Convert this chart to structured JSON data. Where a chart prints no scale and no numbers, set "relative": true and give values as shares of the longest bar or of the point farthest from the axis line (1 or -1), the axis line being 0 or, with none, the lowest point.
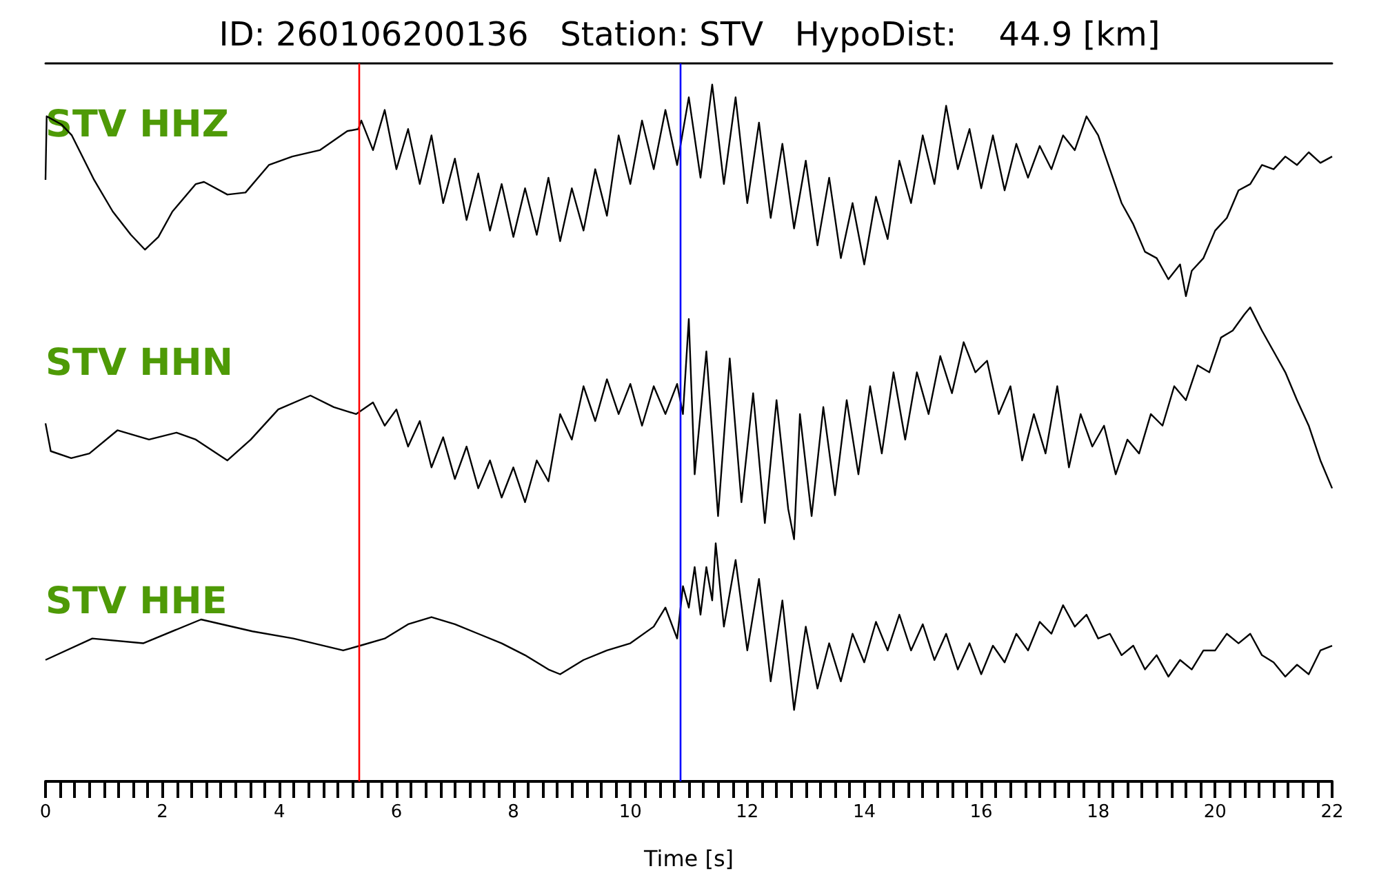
{
  "chart_data": [
    {
      "type": "line",
      "title": "ID: 260106200136   Station: STV   HypoDist:    44.9 [km]",
      "relative": true,
      "tick_labels": false,
      "xlim": [
        0,
        22
      ],
      "ref_lines": [
        {
          "axis": "x",
          "value": 5.35,
          "color": "#ff0000"
        },
        {
          "axis": "x",
          "value": 10.85,
          "color": "#0000ff"
        }
      ],
      "series": [
        {
          "name": "STV HHZ",
          "color": "#000000",
          "x": [
            0,
            0.02,
            0.28,
            0.45,
            0.83,
            1.15,
            1.46,
            1.7,
            1.93,
            2.17,
            2.57,
            2.71,
            3.11,
            3.42,
            3.82,
            4.22,
            4.69,
            5.16,
            5.35,
            5.4,
            5.6,
            5.8,
            6.0,
            6.2,
            6.4,
            6.6,
            6.8,
            7.0,
            7.2,
            7.4,
            7.6,
            7.8,
            8.0,
            8.2,
            8.4,
            8.6,
            8.8,
            9.0,
            9.2,
            9.4,
            9.6,
            9.8,
            10.0,
            10.2,
            10.4,
            10.6,
            10.8,
            11.0,
            11.2,
            11.4,
            11.6,
            11.8,
            12.0,
            12.2,
            12.4,
            12.6,
            12.8,
            13.0,
            13.2,
            13.4,
            13.6,
            13.8,
            14.0,
            14.2,
            14.4,
            14.6,
            14.8,
            15.0,
            15.2,
            15.4,
            15.6,
            15.8,
            16.0,
            16.2,
            16.4,
            16.6,
            16.8,
            17.0,
            17.2,
            17.4,
            17.6,
            17.8,
            18.0,
            18.2,
            18.4,
            18.6,
            18.8,
            19.0,
            19.2,
            19.4,
            19.5,
            19.6,
            19.8,
            20.0,
            20.2,
            20.4,
            20.6,
            20.8,
            21.0,
            21.2,
            21.4,
            21.6,
            21.8,
            22.0
          ],
          "values": [
            0.55,
            0.85,
            0.81,
            0.76,
            0.55,
            0.4,
            0.29,
            0.22,
            0.28,
            0.4,
            0.53,
            0.54,
            0.48,
            0.49,
            0.62,
            0.66,
            0.69,
            0.78,
            0.79,
            0.83,
            0.69,
            0.88,
            0.6,
            0.79,
            0.53,
            0.76,
            0.44,
            0.65,
            0.36,
            0.58,
            0.31,
            0.53,
            0.28,
            0.51,
            0.29,
            0.56,
            0.26,
            0.51,
            0.31,
            0.6,
            0.38,
            0.76,
            0.53,
            0.83,
            0.6,
            0.88,
            0.62,
            0.94,
            0.56,
            1.0,
            0.53,
            0.94,
            0.44,
            0.82,
            0.37,
            0.72,
            0.32,
            0.64,
            0.24,
            0.56,
            0.18,
            0.44,
            0.15,
            0.47,
            0.27,
            0.64,
            0.44,
            0.76,
            0.53,
            0.9,
            0.6,
            0.79,
            0.51,
            0.76,
            0.5,
            0.72,
            0.56,
            0.71,
            0.6,
            0.76,
            0.69,
            0.85,
            0.76,
            0.6,
            0.44,
            0.34,
            0.21,
            0.18,
            0.08,
            0.15,
            0,
            0.12,
            0.18,
            0.31,
            0.37,
            0.5,
            0.53,
            0.62,
            0.6,
            0.66,
            0.62,
            0.68,
            0.63,
            0.66
          ]
        }
      ]
    },
    {
      "type": "line",
      "relative": true,
      "tick_labels": false,
      "xlim": [
        0,
        22
      ],
      "ref_lines": [
        {
          "axis": "x",
          "value": 5.35,
          "color": "#ff0000"
        },
        {
          "axis": "x",
          "value": 10.85,
          "color": "#0000ff"
        }
      ],
      "series": [
        {
          "name": "STV HHN",
          "color": "#000000",
          "x": [
            0,
            0.09,
            0.44,
            0.75,
            1.23,
            1.77,
            2.24,
            2.57,
            3.11,
            3.51,
            3.98,
            4.53,
            4.93,
            5.31,
            5.6,
            5.8,
            6.0,
            6.2,
            6.4,
            6.6,
            6.8,
            7.0,
            7.2,
            7.4,
            7.6,
            7.8,
            8.0,
            8.2,
            8.4,
            8.6,
            8.8,
            9.0,
            9.2,
            9.4,
            9.6,
            9.8,
            10.0,
            10.2,
            10.4,
            10.6,
            10.8,
            10.9,
            11.0,
            11.1,
            11.3,
            11.5,
            11.7,
            11.9,
            12.1,
            12.3,
            12.5,
            12.7,
            12.8,
            12.9,
            13.1,
            13.3,
            13.5,
            13.7,
            13.9,
            14.1,
            14.3,
            14.5,
            14.7,
            14.9,
            15.1,
            15.3,
            15.5,
            15.7,
            15.9,
            16.1,
            16.3,
            16.5,
            16.7,
            16.9,
            17.1,
            17.3,
            17.5,
            17.7,
            17.9,
            18.1,
            18.3,
            18.5,
            18.7,
            18.9,
            19.1,
            19.3,
            19.5,
            19.7,
            19.9,
            20.1,
            20.3,
            20.5,
            20.6,
            20.8,
            21.0,
            21.2,
            21.4,
            21.6,
            21.8,
            22.0
          ],
          "values": [
            0.5,
            0.38,
            0.35,
            0.37,
            0.47,
            0.43,
            0.46,
            0.43,
            0.34,
            0.43,
            0.56,
            0.62,
            0.57,
            0.54,
            0.59,
            0.49,
            0.56,
            0.4,
            0.51,
            0.31,
            0.44,
            0.26,
            0.4,
            0.22,
            0.34,
            0.18,
            0.31,
            0.16,
            0.34,
            0.25,
            0.54,
            0.43,
            0.66,
            0.51,
            0.69,
            0.54,
            0.67,
            0.49,
            0.66,
            0.54,
            0.67,
            0.54,
            0.95,
            0.28,
            0.81,
            0.1,
            0.78,
            0.16,
            0.63,
            0.07,
            0.6,
            0.13,
            0,
            0.54,
            0.1,
            0.57,
            0.19,
            0.6,
            0.28,
            0.66,
            0.37,
            0.72,
            0.43,
            0.72,
            0.54,
            0.79,
            0.63,
            0.85,
            0.72,
            0.77,
            0.54,
            0.66,
            0.34,
            0.54,
            0.37,
            0.66,
            0.31,
            0.54,
            0.4,
            0.49,
            0.28,
            0.43,
            0.37,
            0.54,
            0.49,
            0.66,
            0.6,
            0.75,
            0.72,
            0.87,
            0.9,
            0.97,
            1.0,
            0.9,
            0.81,
            0.72,
            0.6,
            0.49,
            0.34,
            0.22
          ]
        }
      ]
    },
    {
      "type": "line",
      "xlabel": "Time [s]",
      "relative": true,
      "tick_labels": "x",
      "xlim": [
        0,
        22
      ],
      "xticks": [
        0,
        {
          "value": 0.25,
          "label": null
        },
        {
          "value": 0.5,
          "label": null
        },
        {
          "value": 0.75,
          "label": null
        },
        {
          "value": 1,
          "label": null
        },
        {
          "value": 1.25,
          "label": null
        },
        {
          "value": 1.5,
          "label": null
        },
        {
          "value": 1.75,
          "label": null
        },
        2,
        {
          "value": 2.25,
          "label": null
        },
        {
          "value": 2.5,
          "label": null
        },
        {
          "value": 2.75,
          "label": null
        },
        {
          "value": 3,
          "label": null
        },
        {
          "value": 3.25,
          "label": null
        },
        {
          "value": 3.5,
          "label": null
        },
        {
          "value": 3.75,
          "label": null
        },
        4,
        {
          "value": 4.25,
          "label": null
        },
        {
          "value": 4.5,
          "label": null
        },
        {
          "value": 4.75,
          "label": null
        },
        {
          "value": 5,
          "label": null
        },
        {
          "value": 5.25,
          "label": null
        },
        {
          "value": 5.5,
          "label": null
        },
        {
          "value": 5.75,
          "label": null
        },
        6,
        {
          "value": 6.25,
          "label": null
        },
        {
          "value": 6.5,
          "label": null
        },
        {
          "value": 6.75,
          "label": null
        },
        {
          "value": 7,
          "label": null
        },
        {
          "value": 7.25,
          "label": null
        },
        {
          "value": 7.5,
          "label": null
        },
        {
          "value": 7.75,
          "label": null
        },
        8,
        {
          "value": 8.25,
          "label": null
        },
        {
          "value": 8.5,
          "label": null
        },
        {
          "value": 8.75,
          "label": null
        },
        {
          "value": 9,
          "label": null
        },
        {
          "value": 9.25,
          "label": null
        },
        {
          "value": 9.5,
          "label": null
        },
        {
          "value": 9.75,
          "label": null
        },
        10,
        {
          "value": 10.25,
          "label": null
        },
        {
          "value": 10.5,
          "label": null
        },
        {
          "value": 10.75,
          "label": null
        },
        {
          "value": 11,
          "label": null
        },
        {
          "value": 11.25,
          "label": null
        },
        {
          "value": 11.5,
          "label": null
        },
        {
          "value": 11.75,
          "label": null
        },
        12,
        {
          "value": 12.25,
          "label": null
        },
        {
          "value": 12.5,
          "label": null
        },
        {
          "value": 12.75,
          "label": null
        },
        {
          "value": 13,
          "label": null
        },
        {
          "value": 13.25,
          "label": null
        },
        {
          "value": 13.5,
          "label": null
        },
        {
          "value": 13.75,
          "label": null
        },
        14,
        {
          "value": 14.25,
          "label": null
        },
        {
          "value": 14.5,
          "label": null
        },
        {
          "value": 14.75,
          "label": null
        },
        {
          "value": 15,
          "label": null
        },
        {
          "value": 15.25,
          "label": null
        },
        {
          "value": 15.5,
          "label": null
        },
        {
          "value": 15.75,
          "label": null
        },
        16,
        {
          "value": 16.25,
          "label": null
        },
        {
          "value": 16.5,
          "label": null
        },
        {
          "value": 16.75,
          "label": null
        },
        {
          "value": 17,
          "label": null
        },
        {
          "value": 17.25,
          "label": null
        },
        {
          "value": 17.5,
          "label": null
        },
        {
          "value": 17.75,
          "label": null
        },
        18,
        {
          "value": 18.25,
          "label": null
        },
        {
          "value": 18.5,
          "label": null
        },
        {
          "value": 18.75,
          "label": null
        },
        {
          "value": 19,
          "label": null
        },
        {
          "value": 19.25,
          "label": null
        },
        {
          "value": 19.5,
          "label": null
        },
        {
          "value": 19.75,
          "label": null
        },
        20,
        {
          "value": 20.25,
          "label": null
        },
        {
          "value": 20.5,
          "label": null
        },
        {
          "value": 20.75,
          "label": null
        },
        {
          "value": 21,
          "label": null
        },
        {
          "value": 21.25,
          "label": null
        },
        {
          "value": 21.5,
          "label": null
        },
        {
          "value": 21.75,
          "label": null
        },
        22
      ],
      "ref_lines": [
        {
          "axis": "x",
          "value": 5.35,
          "color": "#ff0000"
        },
        {
          "axis": "x",
          "value": 10.85,
          "color": "#0000ff"
        }
      ],
      "series": [
        {
          "name": "STV HHE",
          "color": "#000000",
          "x": [
            0,
            0.8,
            1.67,
            2.66,
            3.54,
            4.24,
            5.09,
            5.38,
            5.8,
            6.2,
            6.6,
            7.0,
            7.4,
            7.8,
            8.2,
            8.6,
            8.8,
            9.2,
            9.6,
            10.0,
            10.4,
            10.6,
            10.8,
            10.9,
            11.0,
            11.1,
            11.2,
            11.3,
            11.4,
            11.46,
            11.6,
            11.8,
            12.0,
            12.2,
            12.4,
            12.6,
            12.8,
            13.0,
            13.2,
            13.4,
            13.6,
            13.8,
            14.0,
            14.2,
            14.4,
            14.6,
            14.8,
            15.0,
            15.2,
            15.4,
            15.6,
            15.8,
            16.0,
            16.2,
            16.4,
            16.6,
            16.8,
            17.0,
            17.2,
            17.4,
            17.6,
            17.8,
            18.0,
            18.2,
            18.4,
            18.6,
            18.8,
            19.0,
            19.2,
            19.4,
            19.6,
            19.8,
            20.0,
            20.2,
            20.4,
            20.6,
            20.8,
            21.0,
            21.2,
            21.4,
            21.6,
            21.8,
            22.0
          ],
          "values": [
            0.51,
            0.6,
            0.58,
            0.68,
            0.63,
            0.6,
            0.55,
            0.57,
            0.6,
            0.66,
            0.69,
            0.66,
            0.62,
            0.58,
            0.53,
            0.47,
            0.45,
            0.51,
            0.55,
            0.58,
            0.65,
            0.73,
            0.6,
            0.82,
            0.73,
            0.9,
            0.7,
            0.9,
            0.76,
            1.0,
            0.65,
            0.93,
            0.55,
            0.85,
            0.42,
            0.76,
            0.3,
            0.65,
            0.39,
            0.58,
            0.42,
            0.62,
            0.5,
            0.67,
            0.55,
            0.7,
            0.55,
            0.66,
            0.51,
            0.62,
            0.47,
            0.58,
            0.45,
            0.57,
            0.5,
            0.62,
            0.55,
            0.67,
            0.62,
            0.74,
            0.65,
            0.7,
            0.6,
            0.62,
            0.53,
            0.57,
            0.47,
            0.53,
            0.44,
            0.51,
            0.47,
            0.55,
            0.55,
            0.62,
            0.58,
            0.62,
            0.53,
            0.5,
            0.44,
            0.49,
            0.45,
            0.55,
            0.57
          ]
        }
      ]
    }
  ]
}
